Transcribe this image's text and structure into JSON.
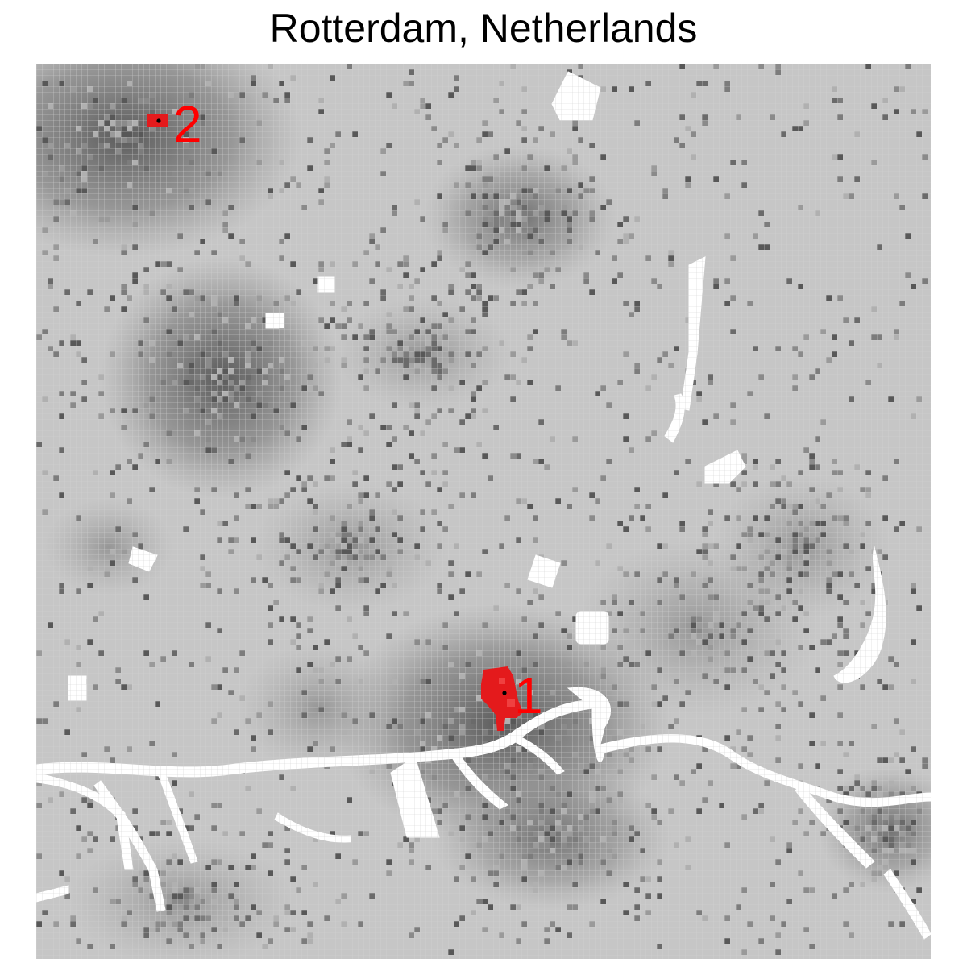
{
  "title": "Rotterdam, Netherlands",
  "colors": {
    "background": "#c6c6c6",
    "grid": "#d4d4d4",
    "water": "#ffffff",
    "urban_light": "#9a9a9a",
    "urban_mid": "#7c7c7c",
    "urban_dark": "#585858",
    "hotspot": "#e41a1c",
    "hotspot_light": "#f04040",
    "label": "#ff0000",
    "center_marker": "#000000"
  },
  "hotspots": [
    {
      "label": "1",
      "name": "hotspot-1"
    },
    {
      "label": "2",
      "name": "hotspot-2"
    }
  ]
}
